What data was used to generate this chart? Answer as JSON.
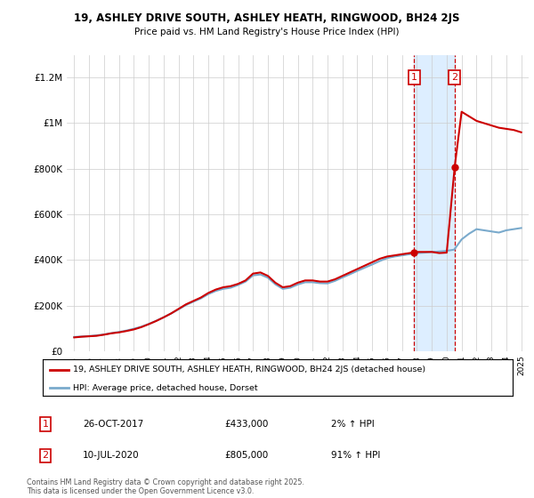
{
  "title_line1": "19, ASHLEY DRIVE SOUTH, ASHLEY HEATH, RINGWOOD, BH24 2JS",
  "title_line2": "Price paid vs. HM Land Registry's House Price Index (HPI)",
  "ylim": [
    0,
    1300000
  ],
  "yticks": [
    0,
    200000,
    400000,
    600000,
    800000,
    1000000,
    1200000
  ],
  "ytick_labels": [
    "£0",
    "£200K",
    "£400K",
    "£600K",
    "£800K",
    "£1M",
    "£1.2M"
  ],
  "xlim_start": 1994.5,
  "xlim_end": 2025.5,
  "xticks": [
    1995,
    1996,
    1997,
    1998,
    1999,
    2000,
    2001,
    2002,
    2003,
    2004,
    2005,
    2006,
    2007,
    2008,
    2009,
    2010,
    2011,
    2012,
    2013,
    2014,
    2015,
    2016,
    2017,
    2018,
    2019,
    2020,
    2021,
    2022,
    2023,
    2024,
    2025
  ],
  "sale1_date": 2017.82,
  "sale1_price": 433000,
  "sale1_label": "1",
  "sale2_date": 2020.53,
  "sale2_price": 805000,
  "sale2_label": "2",
  "shade_start": 2017.82,
  "shade_end": 2020.53,
  "red_line_color": "#cc0000",
  "blue_line_color": "#7aaacc",
  "shade_color": "#ddeeff",
  "vline_color": "#cc0000",
  "background_color": "#ffffff",
  "grid_color": "#cccccc",
  "legend_label1": "19, ASHLEY DRIVE SOUTH, ASHLEY HEATH, RINGWOOD, BH24 2JS (detached house)",
  "legend_label2": "HPI: Average price, detached house, Dorset",
  "annotation1_date": "26-OCT-2017",
  "annotation1_price": "£433,000",
  "annotation1_pct": "2% ↑ HPI",
  "annotation2_date": "10-JUL-2020",
  "annotation2_price": "£805,000",
  "annotation2_pct": "91% ↑ HPI",
  "footnote": "Contains HM Land Registry data © Crown copyright and database right 2025.\nThis data is licensed under the Open Government Licence v3.0.",
  "red_x": [
    1995.0,
    1995.5,
    1996.0,
    1996.5,
    1997.0,
    1997.5,
    1998.0,
    1998.5,
    1999.0,
    1999.5,
    2000.0,
    2000.5,
    2001.0,
    2001.5,
    2002.0,
    2002.5,
    2003.0,
    2003.5,
    2004.0,
    2004.5,
    2005.0,
    2005.5,
    2006.0,
    2006.5,
    2007.0,
    2007.5,
    2008.0,
    2008.5,
    2009.0,
    2009.5,
    2010.0,
    2010.5,
    2011.0,
    2011.5,
    2012.0,
    2012.5,
    2013.0,
    2013.5,
    2014.0,
    2014.5,
    2015.0,
    2015.5,
    2016.0,
    2016.5,
    2017.0,
    2017.5,
    2017.82,
    2018.0,
    2018.5,
    2019.0,
    2019.5,
    2020.0,
    2020.53,
    2021.0,
    2021.5,
    2022.0,
    2022.5,
    2023.0,
    2023.5,
    2024.0,
    2024.5,
    2025.0
  ],
  "red_y": [
    60000,
    63000,
    65000,
    67000,
    72000,
    78000,
    82000,
    88000,
    95000,
    105000,
    118000,
    132000,
    148000,
    165000,
    185000,
    205000,
    220000,
    235000,
    255000,
    270000,
    280000,
    285000,
    295000,
    310000,
    340000,
    345000,
    330000,
    300000,
    280000,
    285000,
    300000,
    310000,
    310000,
    305000,
    305000,
    315000,
    330000,
    345000,
    360000,
    375000,
    390000,
    405000,
    415000,
    420000,
    425000,
    430000,
    433000,
    435000,
    435000,
    435000,
    430000,
    432000,
    805000,
    1050000,
    1030000,
    1010000,
    1000000,
    990000,
    980000,
    975000,
    970000,
    960000
  ],
  "blue_x": [
    1995.0,
    1995.5,
    1996.0,
    1996.5,
    1997.0,
    1997.5,
    1998.0,
    1998.5,
    1999.0,
    1999.5,
    2000.0,
    2000.5,
    2001.0,
    2001.5,
    2002.0,
    2002.5,
    2003.0,
    2003.5,
    2004.0,
    2004.5,
    2005.0,
    2005.5,
    2006.0,
    2006.5,
    2007.0,
    2007.5,
    2008.0,
    2008.5,
    2009.0,
    2009.5,
    2010.0,
    2010.5,
    2011.0,
    2011.5,
    2012.0,
    2012.5,
    2013.0,
    2013.5,
    2014.0,
    2014.5,
    2015.0,
    2015.5,
    2016.0,
    2016.5,
    2017.0,
    2017.5,
    2018.0,
    2018.5,
    2019.0,
    2019.5,
    2020.0,
    2020.5,
    2021.0,
    2021.5,
    2022.0,
    2022.5,
    2023.0,
    2023.5,
    2024.0,
    2024.5,
    2025.0
  ],
  "blue_y": [
    62000,
    64000,
    66000,
    69000,
    73000,
    79000,
    84000,
    90000,
    98000,
    107000,
    119000,
    133000,
    148000,
    165000,
    183000,
    202000,
    217000,
    231000,
    250000,
    264000,
    273000,
    278000,
    290000,
    305000,
    332000,
    336000,
    322000,
    293000,
    273000,
    278000,
    292000,
    302000,
    302000,
    298000,
    297000,
    308000,
    323000,
    337000,
    352000,
    366000,
    380000,
    395000,
    408000,
    415000,
    420000,
    425000,
    430000,
    432000,
    435000,
    437000,
    440000,
    445000,
    490000,
    515000,
    535000,
    530000,
    525000,
    520000,
    530000,
    535000,
    540000
  ]
}
